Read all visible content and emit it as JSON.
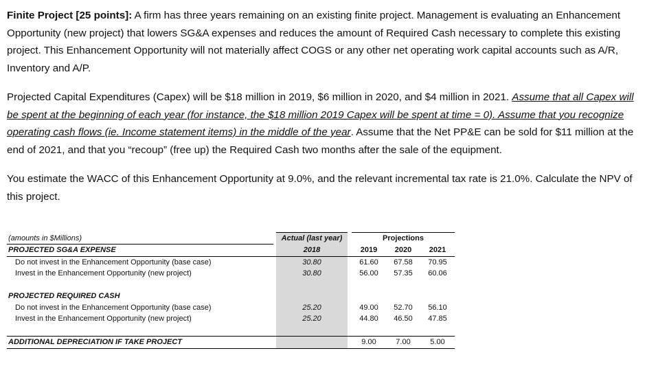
{
  "paragraphs": [
    {
      "segments": [
        {
          "text": "Finite Project [25 points]:",
          "style": "bold"
        },
        {
          "text": "  A firm has three years remaining on an existing finite project.  Management is evaluating an Enhancement Opportunity (new project) that lowers SG&A expenses and reduces the amount of Required Cash necessary to complete this existing project. This Enhancement Opportunity will not materially affect COGS or any other net operating work capital accounts such as A/R, Inventory and A/P."
        }
      ]
    },
    {
      "segments": [
        {
          "text": "Projected Capital Expenditures (Capex) will be $18 million in 2019, $6 million in 2020, and $4 million in 2021.  "
        },
        {
          "text": "Assume that all Capex will be spent at the beginning of each year (for instance, the $18 million 2019 Capex will be spent at time = 0).  Assume that you recognize operating cash flows (ie. Income statement items) in the middle of the year",
          "style": "underline-italic"
        },
        {
          "text": ".  Assume that the Net PP&E can be sold for $11 million at the end of 2021, and that you “recoup” (free up) the Required Cash two months after the sale of the equipment."
        }
      ]
    },
    {
      "segments": [
        {
          "text": "You estimate the WACC of this Enhancement Opportunity at 9.0%, and the relevant incremental tax rate is 21.0%. Calculate the NPV of this project."
        }
      ]
    }
  ],
  "table": {
    "units": "(amounts in $Millions)",
    "actual_header": "Actual (last year)",
    "projections_header": "Projections",
    "years": [
      "2018",
      "2019",
      "2020",
      "2021"
    ],
    "sections": [
      {
        "title": "PROJECTED SG&A EXPENSE",
        "rows": [
          {
            "label": "Do not invest in the Enhancement Opportunity (base case)",
            "values": [
              "30.80",
              "61.60",
              "67.58",
              "70.95"
            ]
          },
          {
            "label": "Invest in the Enhancement Opportunity (new project)",
            "values": [
              "30.80",
              "56.00",
              "57.35",
              "60.06"
            ]
          }
        ]
      },
      {
        "title": "PROJECTED REQUIRED CASH",
        "rows": [
          {
            "label": "Do not invest in the Enhancement Opportunity (base case)",
            "values": [
              "25.20",
              "49.00",
              "52.70",
              "56.10"
            ]
          },
          {
            "label": "Invest in the Enhancement Opportunity (new project)",
            "values": [
              "25.20",
              "44.80",
              "46.50",
              "47.85"
            ]
          }
        ]
      },
      {
        "title": "ADDITIONAL DEPRECIATION IF TAKE PROJECT",
        "values": [
          "9.00",
          "7.00",
          "5.00"
        ]
      }
    ]
  }
}
